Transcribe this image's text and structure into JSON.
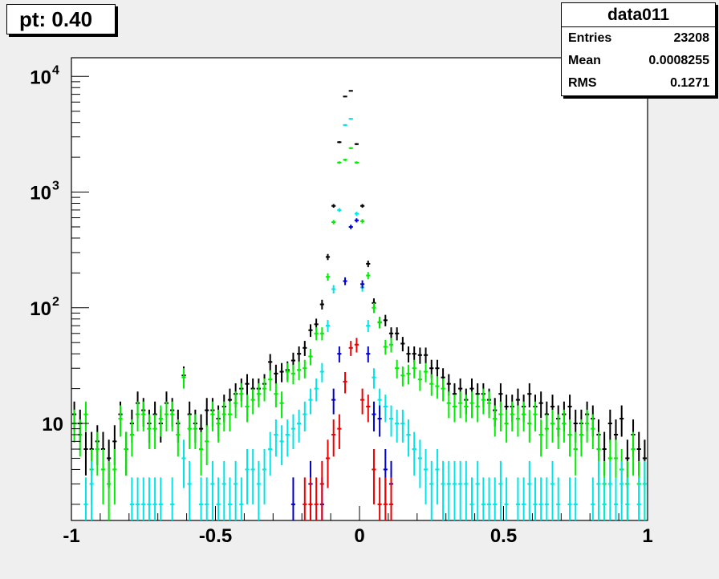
{
  "title": "pt: 0.40",
  "stats": {
    "name": "data011",
    "rows": [
      {
        "label": "Entries",
        "value": "23208"
      },
      {
        "label": "Mean",
        "value": "0.0008255"
      },
      {
        "label": "RMS",
        "value": "0.1271"
      }
    ]
  },
  "chart_data": {
    "type": "scatter",
    "xlim": [
      -1,
      1
    ],
    "ylim": [
      1.45,
      14500
    ],
    "yscale": "log",
    "bin_width": 0.02,
    "x_ticks": [
      "-1",
      "-0.5",
      "0",
      "0.5",
      "1"
    ],
    "y_ticks": [
      {
        "base": "10",
        "exp": "4",
        "value": 10000
      },
      {
        "base": "10",
        "exp": "3",
        "value": 1000
      },
      {
        "base": "10",
        "exp": "2",
        "value": 100
      },
      {
        "base": "10",
        "exp": "",
        "value": 10
      }
    ],
    "series": [
      {
        "color": "#000000",
        "points": [
          [
            -0.99,
            12
          ],
          [
            -0.97,
            10
          ],
          [
            -0.95,
            6
          ],
          [
            -0.93,
            6
          ],
          [
            -0.91,
            7
          ],
          [
            -0.89,
            6
          ],
          [
            -0.87,
            5
          ],
          [
            -0.85,
            7
          ],
          [
            -0.83,
            12
          ],
          [
            -0.81,
            6
          ],
          [
            -0.79,
            10
          ],
          [
            -0.77,
            15
          ],
          [
            -0.75,
            13
          ],
          [
            -0.73,
            10
          ],
          [
            -0.71,
            12
          ],
          [
            -0.69,
            10
          ],
          [
            -0.67,
            15
          ],
          [
            -0.65,
            13
          ],
          [
            -0.63,
            10
          ],
          [
            -0.61,
            26
          ],
          [
            -0.59,
            12
          ],
          [
            -0.57,
            10
          ],
          [
            -0.55,
            9
          ],
          [
            -0.53,
            13
          ],
          [
            -0.51,
            13
          ],
          [
            -0.49,
            11
          ],
          [
            -0.47,
            14
          ],
          [
            -0.45,
            16
          ],
          [
            -0.43,
            18
          ],
          [
            -0.41,
            20
          ],
          [
            -0.39,
            22
          ],
          [
            -0.37,
            20
          ],
          [
            -0.35,
            20
          ],
          [
            -0.33,
            22
          ],
          [
            -0.31,
            34
          ],
          [
            -0.29,
            27
          ],
          [
            -0.27,
            28
          ],
          [
            -0.25,
            29
          ],
          [
            -0.23,
            35
          ],
          [
            -0.21,
            40
          ],
          [
            -0.19,
            45
          ],
          [
            -0.17,
            64
          ],
          [
            -0.15,
            72
          ],
          [
            -0.13,
            107
          ],
          [
            -0.11,
            275
          ],
          [
            -0.09,
            760
          ],
          [
            -0.07,
            2700
          ],
          [
            -0.05,
            6700
          ],
          [
            -0.03,
            7500
          ],
          [
            -0.01,
            2600
          ],
          [
            0.01,
            760
          ],
          [
            0.03,
            240
          ],
          [
            0.05,
            110
          ],
          [
            0.07,
            75
          ],
          [
            0.09,
            78
          ],
          [
            0.11,
            60
          ],
          [
            0.13,
            60
          ],
          [
            0.15,
            49
          ],
          [
            0.17,
            40
          ],
          [
            0.19,
            40
          ],
          [
            0.21,
            39
          ],
          [
            0.23,
            39
          ],
          [
            0.25,
            30
          ],
          [
            0.27,
            30
          ],
          [
            0.29,
            25
          ],
          [
            0.31,
            22
          ],
          [
            0.33,
            18
          ],
          [
            0.35,
            20
          ],
          [
            0.37,
            16
          ],
          [
            0.39,
            20
          ],
          [
            0.41,
            18
          ],
          [
            0.43,
            18
          ],
          [
            0.45,
            16
          ],
          [
            0.47,
            13
          ],
          [
            0.49,
            18
          ],
          [
            0.51,
            14
          ],
          [
            0.53,
            14
          ],
          [
            0.55,
            16
          ],
          [
            0.57,
            14
          ],
          [
            0.59,
            18
          ],
          [
            0.61,
            14
          ],
          [
            0.63,
            15
          ],
          [
            0.65,
            12
          ],
          [
            0.67,
            14
          ],
          [
            0.69,
            11
          ],
          [
            0.71,
            12
          ],
          [
            0.73,
            14
          ],
          [
            0.75,
            10
          ],
          [
            0.77,
            10
          ],
          [
            0.79,
            12
          ],
          [
            0.81,
            11
          ],
          [
            0.83,
            8
          ],
          [
            0.85,
            6
          ],
          [
            0.87,
            10
          ],
          [
            0.89,
            8
          ],
          [
            0.91,
            11
          ],
          [
            0.93,
            5
          ],
          [
            0.95,
            8
          ],
          [
            0.97,
            6
          ],
          [
            0.99,
            5
          ]
        ]
      },
      {
        "color": "#00ee00",
        "points": [
          [
            -0.99,
            10
          ],
          [
            -0.97,
            8
          ],
          [
            -0.95,
            12
          ],
          [
            -0.93,
            4
          ],
          [
            -0.91,
            6
          ],
          [
            -0.89,
            4
          ],
          [
            -0.87,
            3
          ],
          [
            -0.85,
            4
          ],
          [
            -0.83,
            11
          ],
          [
            -0.81,
            6
          ],
          [
            -0.79,
            8
          ],
          [
            -0.77,
            12
          ],
          [
            -0.75,
            12
          ],
          [
            -0.73,
            9
          ],
          [
            -0.71,
            9
          ],
          [
            -0.69,
            11
          ],
          [
            -0.67,
            12
          ],
          [
            -0.65,
            12
          ],
          [
            -0.63,
            8
          ],
          [
            -0.61,
            25
          ],
          [
            -0.59,
            9
          ],
          [
            -0.57,
            9
          ],
          [
            -0.55,
            6
          ],
          [
            -0.53,
            7
          ],
          [
            -0.51,
            12
          ],
          [
            -0.49,
            10
          ],
          [
            -0.47,
            12
          ],
          [
            -0.45,
            12
          ],
          [
            -0.43,
            15
          ],
          [
            -0.41,
            18
          ],
          [
            -0.39,
            14
          ],
          [
            -0.37,
            16
          ],
          [
            -0.35,
            18
          ],
          [
            -0.33,
            20
          ],
          [
            -0.31,
            24
          ],
          [
            -0.29,
            18
          ],
          [
            -0.27,
            15
          ],
          [
            -0.25,
            28
          ],
          [
            -0.23,
            27
          ],
          [
            -0.21,
            29
          ],
          [
            -0.19,
            30
          ],
          [
            -0.17,
            38
          ],
          [
            -0.15,
            60
          ],
          [
            -0.13,
            60
          ],
          [
            -0.11,
            185
          ],
          [
            -0.09,
            550
          ],
          [
            -0.07,
            1800
          ],
          [
            -0.05,
            1900
          ],
          [
            -0.03,
            2400
          ],
          [
            -0.01,
            1800
          ],
          [
            0.01,
            560
          ],
          [
            0.03,
            190
          ],
          [
            0.05,
            100
          ],
          [
            0.07,
            75
          ],
          [
            0.09,
            46
          ],
          [
            0.11,
            48
          ],
          [
            0.13,
            30
          ],
          [
            0.15,
            26
          ],
          [
            0.17,
            27
          ],
          [
            0.19,
            30
          ],
          [
            0.21,
            24
          ],
          [
            0.23,
            28
          ],
          [
            0.25,
            22
          ],
          [
            0.27,
            21
          ],
          [
            0.29,
            20
          ],
          [
            0.31,
            15
          ],
          [
            0.33,
            14
          ],
          [
            0.35,
            15
          ],
          [
            0.37,
            14
          ],
          [
            0.39,
            15
          ],
          [
            0.41,
            14
          ],
          [
            0.43,
            16
          ],
          [
            0.45,
            15
          ],
          [
            0.47,
            11
          ],
          [
            0.49,
            12
          ],
          [
            0.51,
            10
          ],
          [
            0.53,
            12
          ],
          [
            0.55,
            11
          ],
          [
            0.57,
            12
          ],
          [
            0.59,
            10
          ],
          [
            0.61,
            12
          ],
          [
            0.63,
            8
          ],
          [
            0.65,
            9
          ],
          [
            0.67,
            10
          ],
          [
            0.69,
            9
          ],
          [
            0.71,
            10
          ],
          [
            0.73,
            8
          ],
          [
            0.75,
            6
          ],
          [
            0.77,
            8
          ],
          [
            0.79,
            10
          ],
          [
            0.81,
            9
          ],
          [
            0.83,
            6
          ],
          [
            0.85,
            3
          ],
          [
            0.87,
            5
          ],
          [
            0.89,
            5
          ],
          [
            0.91,
            4
          ],
          [
            0.93,
            3
          ],
          [
            0.95,
            6
          ],
          [
            0.97,
            3
          ],
          [
            0.99,
            3
          ]
        ]
      },
      {
        "color": "#00e5e5",
        "points": [
          [
            -0.95,
            2
          ],
          [
            -0.93,
            3
          ],
          [
            -0.79,
            2
          ],
          [
            -0.77,
            2
          ],
          [
            -0.75,
            2
          ],
          [
            -0.73,
            2
          ],
          [
            -0.71,
            2
          ],
          [
            -0.69,
            2
          ],
          [
            -0.65,
            2
          ],
          [
            -0.61,
            5
          ],
          [
            -0.59,
            3
          ],
          [
            -0.55,
            2
          ],
          [
            -0.53,
            2
          ],
          [
            -0.51,
            3
          ],
          [
            -0.49,
            2
          ],
          [
            -0.47,
            3
          ],
          [
            -0.45,
            2
          ],
          [
            -0.43,
            3
          ],
          [
            -0.41,
            2
          ],
          [
            -0.39,
            4
          ],
          [
            -0.37,
            4
          ],
          [
            -0.35,
            3
          ],
          [
            -0.33,
            4
          ],
          [
            -0.31,
            6
          ],
          [
            -0.29,
            8
          ],
          [
            -0.27,
            7
          ],
          [
            -0.25,
            8
          ],
          [
            -0.23,
            9
          ],
          [
            -0.21,
            10
          ],
          [
            -0.19,
            12
          ],
          [
            -0.17,
            16
          ],
          [
            -0.15,
            20
          ],
          [
            -0.13,
            28
          ],
          [
            -0.11,
            70
          ],
          [
            -0.09,
            145
          ],
          [
            -0.07,
            700
          ],
          [
            -0.05,
            3800
          ],
          [
            -0.03,
            4300
          ],
          [
            -0.01,
            650
          ],
          [
            0.01,
            150
          ],
          [
            0.03,
            70
          ],
          [
            0.05,
            25
          ],
          [
            0.07,
            16
          ],
          [
            0.09,
            14
          ],
          [
            0.11,
            11
          ],
          [
            0.13,
            10
          ],
          [
            0.15,
            10
          ],
          [
            0.17,
            8
          ],
          [
            0.19,
            6
          ],
          [
            0.21,
            5
          ],
          [
            0.23,
            4
          ],
          [
            0.25,
            3
          ],
          [
            0.27,
            4
          ],
          [
            0.29,
            3
          ],
          [
            0.31,
            3
          ],
          [
            0.33,
            3
          ],
          [
            0.35,
            3
          ],
          [
            0.37,
            3
          ],
          [
            0.39,
            2
          ],
          [
            0.41,
            3
          ],
          [
            0.43,
            2
          ],
          [
            0.45,
            2
          ],
          [
            0.47,
            2
          ],
          [
            0.49,
            3
          ],
          [
            0.51,
            2
          ],
          [
            0.55,
            2
          ],
          [
            0.57,
            2
          ],
          [
            0.59,
            3
          ],
          [
            0.61,
            2
          ],
          [
            0.63,
            2
          ],
          [
            0.65,
            2
          ],
          [
            0.67,
            3
          ],
          [
            0.69,
            2
          ],
          [
            0.73,
            2
          ],
          [
            0.75,
            2
          ],
          [
            0.81,
            2
          ],
          [
            0.83,
            3
          ],
          [
            0.85,
            2
          ],
          [
            0.87,
            3
          ],
          [
            0.89,
            2
          ],
          [
            0.91,
            3
          ],
          [
            0.93,
            2
          ],
          [
            0.97,
            2
          ],
          [
            0.99,
            3
          ]
        ]
      },
      {
        "color": "#0000cc",
        "points": [
          [
            -0.23,
            2
          ],
          [
            -0.17,
            3
          ],
          [
            -0.13,
            2
          ],
          [
            -0.09,
            16
          ],
          [
            -0.07,
            40
          ],
          [
            -0.05,
            170
          ],
          [
            -0.03,
            500
          ],
          [
            -0.01,
            570
          ],
          [
            0.01,
            160
          ],
          [
            0.03,
            40
          ],
          [
            0.05,
            12
          ],
          [
            0.07,
            11
          ],
          [
            0.09,
            4
          ],
          [
            0.11,
            3
          ]
        ]
      },
      {
        "color": "#ee0000",
        "points": [
          [
            -0.19,
            2
          ],
          [
            -0.17,
            2
          ],
          [
            -0.15,
            2
          ],
          [
            -0.13,
            3
          ],
          [
            -0.11,
            5
          ],
          [
            -0.09,
            8
          ],
          [
            -0.07,
            9
          ],
          [
            -0.05,
            23
          ],
          [
            -0.03,
            45
          ],
          [
            -0.01,
            48
          ],
          [
            0.01,
            16
          ],
          [
            0.03,
            14
          ],
          [
            0.05,
            4
          ],
          [
            0.07,
            2
          ],
          [
            0.09,
            2
          ],
          [
            0.11,
            2
          ]
        ]
      }
    ]
  }
}
